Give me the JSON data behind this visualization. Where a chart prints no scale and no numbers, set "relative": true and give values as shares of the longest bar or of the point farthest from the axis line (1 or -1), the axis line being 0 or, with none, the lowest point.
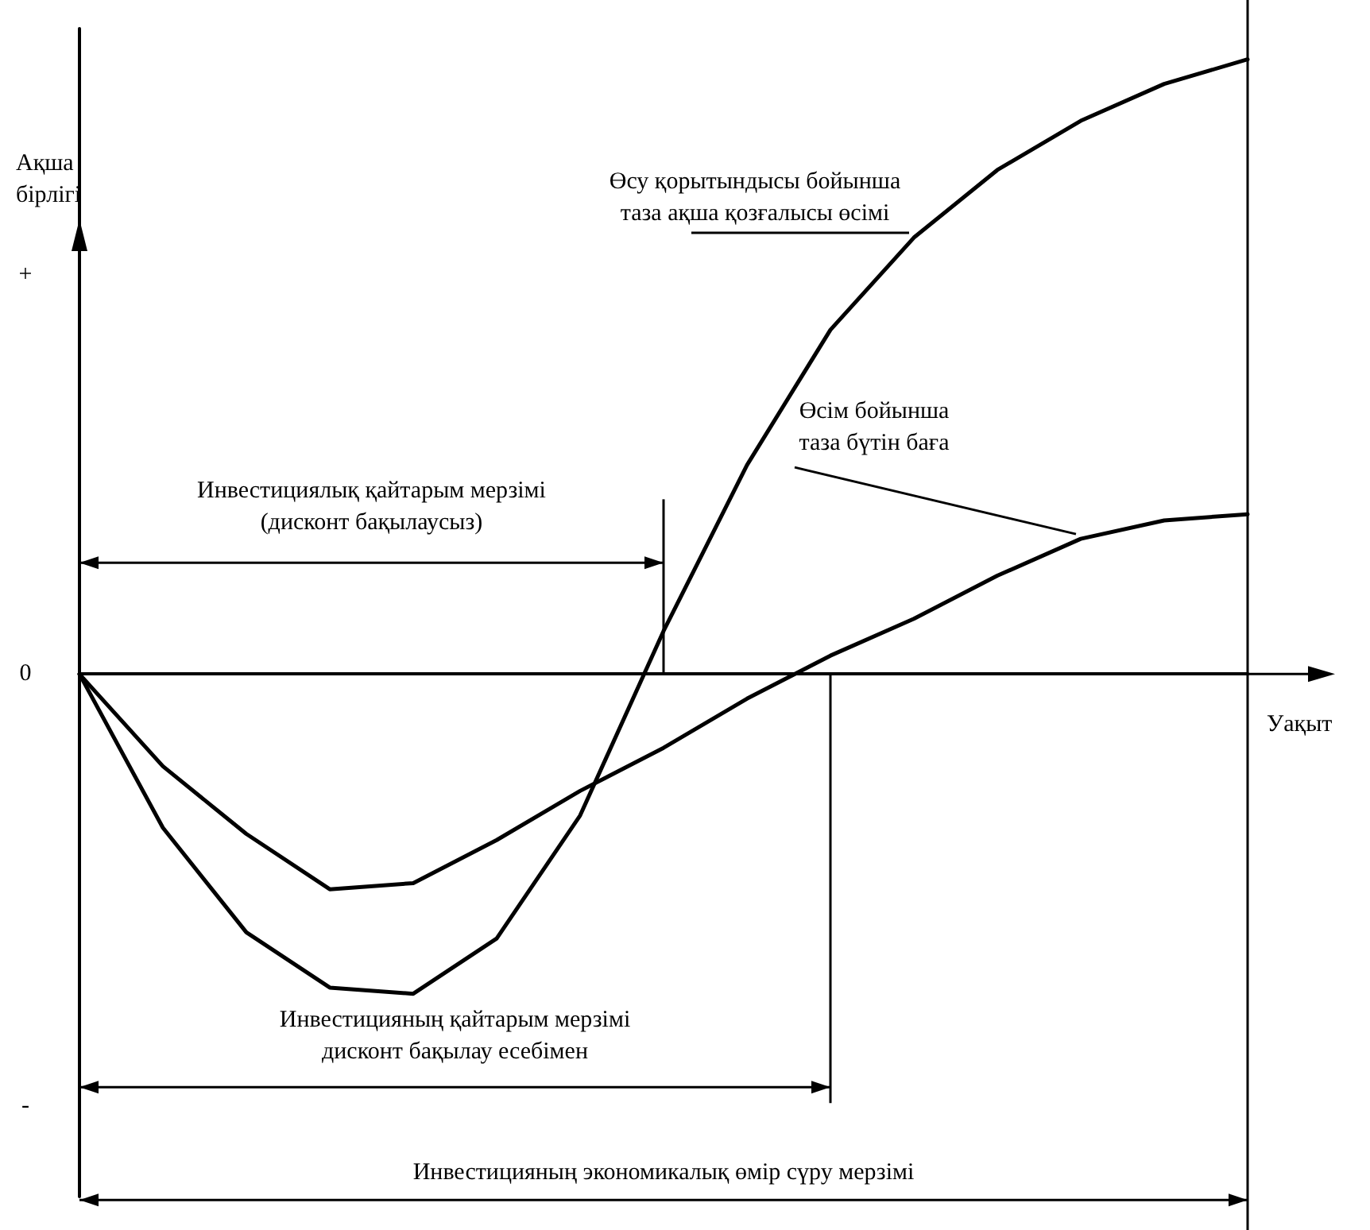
{
  "chart_data": {
    "type": "line",
    "relative": true,
    "marker": "none",
    "line_style": "solid",
    "xlabel": "Уақыт",
    "ylabel": "Ақша бірлігі",
    "categories": [
      null,
      null,
      null,
      null,
      null,
      null,
      null,
      null,
      null,
      null,
      null,
      null,
      null,
      null,
      null
    ],
    "series": [
      {
        "name": "Өсу қорытындысы бойынша\nтаза ақша қозғалысы өсімі",
        "color": "#000000",
        "values": [
          0,
          -0.25,
          -0.42,
          -0.51,
          -0.52,
          -0.43,
          -0.23,
          0.07,
          0.34,
          0.56,
          0.71,
          0.82,
          0.9,
          0.96,
          1
        ]
      },
      {
        "name": "Өсім бойынша\nтаза бүтін баға",
        "color": "#000000",
        "values": [
          0,
          -0.15,
          -0.26,
          -0.35,
          -0.34,
          -0.27,
          -0.19,
          -0.12,
          -0.04,
          0.03,
          0.09,
          0.16,
          0.22,
          0.25,
          0.26
        ]
      }
    ],
    "annotations": [
      "+",
      "0",
      "-",
      "Инвестициялық қайтарым мерзімі\n(дисконт бақылаусыз)",
      "Инвестицияның қайтарым мерзімі\nдисконт бақылау есебімен",
      "Инвестицияның экономикалық өмір сүру мерзімі"
    ]
  }
}
